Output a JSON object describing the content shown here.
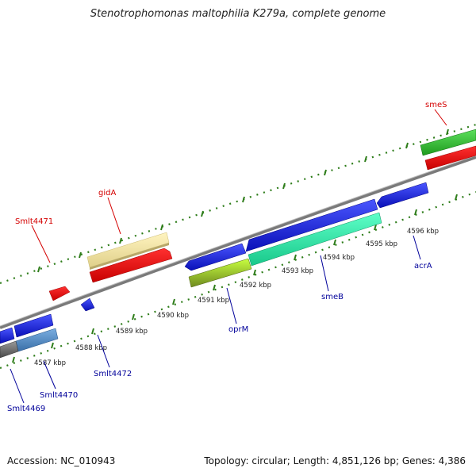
{
  "title": "Stenotrophomonas maltophilia K279a, complete genome",
  "footer": {
    "accession": "Accession: NC_010943",
    "summary": "Topology: circular; Length: 4,851,126 bp; Genes: 4,386"
  },
  "colors": {
    "forward_label": "#d40000",
    "reverse_label": "#00009a",
    "tick_green": "#2e7d1a",
    "backbone": "#7a7a7a"
  },
  "ticks": [
    "4587 kbp",
    "4588 kbp",
    "4589 kbp",
    "4590 kbp",
    "4591 kbp",
    "4592 kbp",
    "4593 kbp",
    "4594 kbp",
    "4595 kbp",
    "4596 kbp"
  ],
  "gene_labels": {
    "smeS": "smeS",
    "gidA": "gidA",
    "Smlt4471": "Smlt4471",
    "acrA": "acrA",
    "smeB": "smeB",
    "oprM": "oprM",
    "Smlt4472": "Smlt4472",
    "Smlt4470": "Smlt4470",
    "Smlt4469": "Smlt4469"
  }
}
